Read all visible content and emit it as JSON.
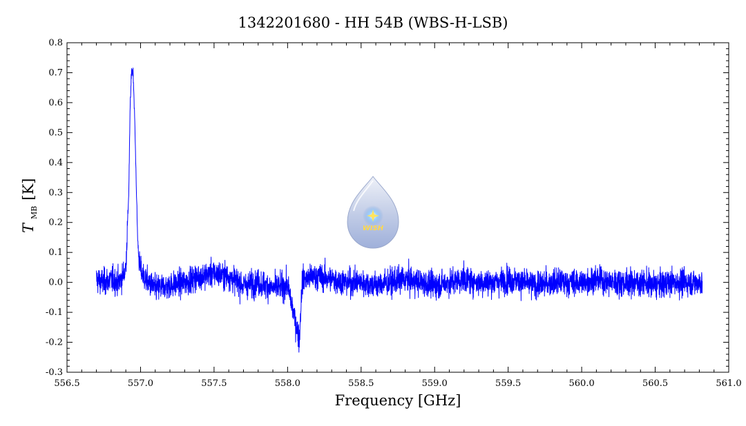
{
  "chart_data": {
    "type": "line",
    "title": "1342201680 - HH 54B (WBS-H-LSB)",
    "xlabel": "Frequency [GHz]",
    "ylabel_main": "T",
    "ylabel_sub": "MB",
    "ylabel_unit": "[K]",
    "xlim": [
      556.5,
      561.0
    ],
    "ylim": [
      -0.3,
      0.8
    ],
    "x_ticks": [
      "556.5",
      "557.0",
      "557.5",
      "558.0",
      "558.5",
      "559.0",
      "559.5",
      "560.0",
      "560.5",
      "561.0"
    ],
    "y_ticks": [
      "-0.3",
      "-0.2",
      "-0.1",
      "0.0",
      "0.1",
      "0.2",
      "0.3",
      "0.4",
      "0.5",
      "0.6",
      "0.7",
      "0.8"
    ],
    "grid": false,
    "series": [
      {
        "color": "#0000ff",
        "x": [
          556.7,
          556.75,
          556.8,
          556.85,
          556.88,
          556.9,
          556.92,
          556.93,
          556.94,
          556.95,
          556.96,
          556.97,
          556.98,
          556.99,
          557.0,
          557.02,
          557.05,
          557.1,
          557.2,
          557.3,
          557.4,
          557.5,
          557.6,
          557.7,
          557.8,
          557.9,
          558.0,
          558.08,
          558.1,
          558.2,
          558.3,
          558.4,
          558.5,
          558.6,
          558.7,
          558.8,
          558.9,
          559.0,
          559.1,
          559.2,
          559.3,
          559.4,
          559.5,
          559.6,
          559.7,
          559.8,
          559.9,
          560.0,
          560.1,
          560.2,
          560.3,
          560.4,
          560.5,
          560.6,
          560.7,
          560.82
        ],
        "y": [
          0.01,
          0.0,
          0.01,
          0.0,
          0.02,
          0.05,
          0.3,
          0.6,
          0.71,
          0.7,
          0.55,
          0.35,
          0.15,
          0.07,
          0.04,
          0.02,
          0.0,
          -0.02,
          -0.01,
          0.0,
          0.02,
          0.03,
          0.02,
          -0.01,
          0.0,
          -0.02,
          -0.01,
          -0.19,
          0.01,
          0.02,
          0.01,
          0.0,
          0.0,
          -0.01,
          0.0,
          0.01,
          0.0,
          -0.01,
          0.0,
          0.01,
          0.0,
          0.0,
          0.01,
          0.0,
          -0.01,
          0.0,
          0.0,
          0.0,
          0.01,
          0.0,
          0.0,
          0.0,
          -0.01,
          0.0,
          0.0,
          0.0
        ]
      }
    ],
    "noise_sigma": 0.022
  },
  "logo": {
    "text": "WISH",
    "colors": {
      "drop_top": "#e8ecf6",
      "drop_bottom": "#a9b7dd",
      "star": "#ffe45c"
    }
  }
}
